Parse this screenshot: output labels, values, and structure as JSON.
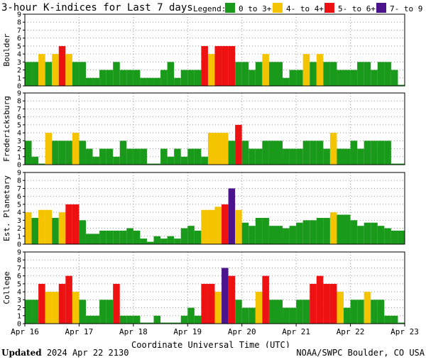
{
  "footer": {
    "updated_label": "Updated",
    "updated_value": "2024 Apr 22 2130",
    "credit": "NOAA/SWPC Boulder, CO USA"
  },
  "chart_data": {
    "type": "bar",
    "title": "3-hour K-indices for Last 7 days",
    "legend_title": "Legend:",
    "legend": [
      {
        "label": "0 to 3+",
        "color": "#1a9a1a"
      },
      {
        "label": "4- to 4+",
        "color": "#f5c400"
      },
      {
        "label": "5- to 6+",
        "color": "#ee1111"
      },
      {
        "label": "7- to 9",
        "color": "#4b148c"
      }
    ],
    "xlabel": "Coordinate Universal Time (UTC)",
    "x_ticks": [
      "Apr 16",
      "Apr 17",
      "Apr 18",
      "Apr 19",
      "Apr 20",
      "Apr 21",
      "Apr 22",
      "Apr 23"
    ],
    "ylim": [
      0,
      9
    ],
    "y_ticks": [
      0,
      1,
      2,
      3,
      4,
      5,
      6,
      7,
      8,
      9
    ],
    "grid": true,
    "intervals_per_day": 8,
    "days": 7,
    "series": [
      {
        "name": "Boulder",
        "values": [
          3,
          3,
          4,
          3,
          4,
          5,
          4,
          3,
          3,
          1,
          1,
          2,
          2,
          3,
          2,
          2,
          2,
          1,
          1,
          1,
          2,
          3,
          1,
          2,
          2,
          2,
          5,
          4,
          5,
          5,
          5,
          3,
          3,
          2,
          3,
          4,
          3,
          3,
          1,
          2,
          2,
          4,
          3,
          4,
          3,
          3,
          2,
          2,
          2,
          3,
          3,
          2,
          3,
          3,
          2,
          0
        ]
      },
      {
        "name": "Fredericksburg",
        "values": [
          3,
          1,
          0,
          4,
          3,
          3,
          3,
          4,
          3,
          2,
          1,
          2,
          2,
          1,
          3,
          2,
          2,
          2,
          0,
          0,
          2,
          1,
          2,
          1,
          2,
          2,
          1,
          4,
          4,
          4,
          3,
          5,
          3,
          2,
          2,
          3,
          3,
          3,
          2,
          2,
          2,
          3,
          3,
          3,
          2,
          4,
          2,
          2,
          3,
          2,
          3,
          3,
          3,
          3,
          0,
          0
        ]
      },
      {
        "name": "Est. Planetary",
        "values": [
          4.0,
          3.3,
          4.3,
          4.3,
          3.3,
          4.0,
          5.0,
          5.0,
          3.0,
          1.3,
          1.3,
          1.7,
          1.7,
          1.7,
          1.7,
          2.0,
          1.7,
          0.7,
          0.3,
          1.0,
          0.7,
          1.0,
          0.7,
          2.0,
          2.3,
          1.7,
          4.3,
          4.3,
          4.7,
          5.0,
          7.0,
          4.3,
          2.7,
          2.3,
          3.3,
          3.3,
          2.3,
          2.3,
          2.0,
          2.3,
          2.7,
          3.0,
          3.0,
          3.3,
          3.3,
          4.0,
          3.7,
          3.7,
          3.0,
          2.3,
          2.7,
          2.7,
          2.3,
          2.0,
          1.7,
          1.7
        ]
      },
      {
        "name": "College",
        "values": [
          3,
          3,
          5,
          4,
          4,
          5,
          6,
          4,
          3,
          1,
          1,
          3,
          3,
          5,
          1,
          1,
          1,
          0,
          0,
          1,
          0,
          0,
          0,
          1,
          2,
          1,
          5,
          5,
          4,
          7,
          6,
          3,
          2,
          2,
          4,
          6,
          3,
          3,
          2,
          2,
          3,
          3,
          5,
          6,
          5,
          5,
          4,
          2,
          3,
          3,
          4,
          3,
          3,
          1,
          1,
          0
        ]
      }
    ]
  }
}
